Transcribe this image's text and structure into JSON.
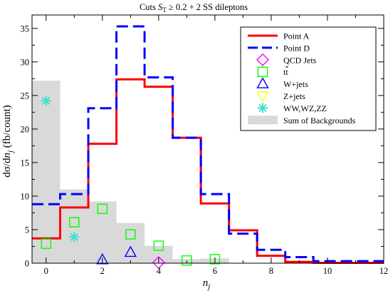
{
  "chart_data": {
    "type": "histogram",
    "title": "Cuts S_T ≥ 0.2 + 2 SS dileptons",
    "title_parts": {
      "lead": "Cuts ",
      "var": "S",
      "sub": "T",
      "tail": " ≥ 0.2 + 2 SS dileptons"
    },
    "xlabel": "n_j",
    "xlabel_parts": {
      "var": "n",
      "sub": "j"
    },
    "ylabel": "dσ/dn_j (fb/count)",
    "ylabel_parts": {
      "lead": "dσ/d",
      "var": "n",
      "sub": "j",
      "tail": " (fb/count)"
    },
    "xlim": [
      -0.5,
      12
    ],
    "ylim": [
      0,
      37
    ],
    "xticks": [
      0,
      2,
      4,
      6,
      8,
      10,
      12
    ],
    "yticks": [
      0,
      5,
      10,
      15,
      20,
      25,
      30,
      35
    ],
    "legend_position": "top-right",
    "background": {
      "name": "Sum of Backgrounds",
      "color": "#d9d9d9",
      "bins": [
        [
          -0.5,
          0.5,
          27.2
        ],
        [
          0.5,
          1.5,
          11.0
        ],
        [
          1.5,
          2.5,
          9.2
        ],
        [
          2.5,
          3.5,
          6.0
        ],
        [
          3.5,
          4.5,
          2.6
        ],
        [
          4.5,
          5.5,
          0.6
        ],
        [
          5.5,
          6.5,
          0.7
        ]
      ]
    },
    "series": [
      {
        "name": "Point A",
        "color": "#ff0000",
        "dash": "solid",
        "edges": [
          -0.5,
          0.5,
          1.5,
          2.5,
          3.5,
          4.5,
          5.5,
          6.5,
          7.5,
          8.5,
          9.5,
          12
        ],
        "values": [
          3.7,
          8.3,
          17.8,
          27.4,
          26.3,
          18.7,
          8.9,
          4.9,
          1.1,
          0.2,
          0.05
        ]
      },
      {
        "name": "Point D",
        "color": "#0000ff",
        "dash": "dashed",
        "edges": [
          -0.5,
          0.5,
          1.5,
          2.5,
          3.5,
          4.5,
          5.5,
          6.5,
          7.5,
          8.5,
          9.5,
          12
        ],
        "values": [
          8.8,
          10.3,
          23.1,
          35.3,
          27.7,
          18.7,
          10.3,
          4.4,
          2.0,
          0.9,
          0.3
        ]
      }
    ],
    "markers": [
      {
        "name": "QCD Jets",
        "shape": "diamond",
        "color": "#ff00ff",
        "points": [
          [
            4,
            0.1
          ]
        ]
      },
      {
        "name": "tt̄",
        "name_parts": {
          "base": "t",
          "bar": "t"
        },
        "shape": "square",
        "color": "#00ff00",
        "points": [
          [
            0,
            2.9
          ],
          [
            1,
            6.1
          ],
          [
            2,
            8.1
          ],
          [
            3,
            4.3
          ],
          [
            4,
            2.6
          ],
          [
            5,
            0.4
          ],
          [
            6,
            0.6
          ]
        ]
      },
      {
        "name": "W+jets",
        "shape": "triangle-up",
        "color": "#0000ff",
        "points": [
          [
            2,
            0.5
          ],
          [
            3,
            1.6
          ]
        ]
      },
      {
        "name": "Z+jets",
        "shape": "triangle-down",
        "color": "#ffff00",
        "points": []
      },
      {
        "name": "WW,WZ,ZZ",
        "shape": "asterisk",
        "color": "#40e0d0",
        "points": [
          [
            0,
            24.2
          ],
          [
            1,
            3.9
          ]
        ]
      }
    ]
  }
}
